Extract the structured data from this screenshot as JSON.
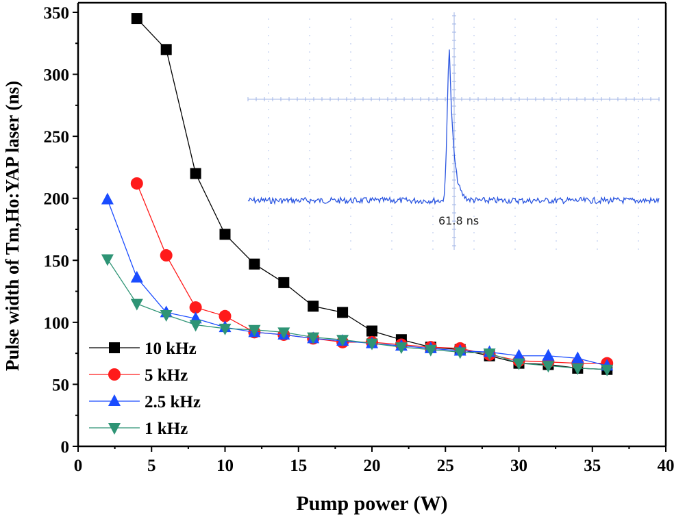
{
  "chart_data": {
    "type": "line",
    "xlabel": "Pump power (W)",
    "ylabel": "Pulse width of Tm,Ho:YAP laser (ns)",
    "xlim": [
      0,
      40
    ],
    "ylim": [
      0,
      350
    ],
    "xticks": [
      0,
      5,
      10,
      15,
      20,
      25,
      30,
      35,
      40
    ],
    "yticks": [
      0,
      50,
      100,
      150,
      200,
      250,
      300,
      350
    ],
    "grid": false,
    "legend_position": "bottom-left",
    "series": [
      {
        "name": "10 kHz",
        "color": "#000000",
        "marker": "square",
        "x": [
          4,
          6,
          8,
          10,
          12,
          14,
          16,
          18,
          20,
          22,
          24,
          26,
          28,
          30,
          32,
          34,
          36
        ],
        "y": [
          345,
          320,
          220,
          171,
          147,
          132,
          113,
          108,
          93,
          86,
          80,
          78,
          73,
          67,
          66,
          63,
          62
        ]
      },
      {
        "name": "5 kHz",
        "color": "#ff1a1a",
        "marker": "circle",
        "x": [
          4,
          6,
          8,
          10,
          12,
          14,
          16,
          18,
          20,
          22,
          24,
          26,
          28,
          30,
          32,
          34,
          36
        ],
        "y": [
          212,
          154,
          112,
          105,
          92,
          90,
          87,
          84,
          84,
          82,
          80,
          79,
          74,
          69,
          68,
          67,
          67
        ]
      },
      {
        "name": "2.5 kHz",
        "color": "#1a4cff",
        "marker": "triangle-up",
        "x": [
          2,
          4,
          6,
          8,
          10,
          12,
          14,
          16,
          18,
          20,
          22,
          24,
          26,
          28,
          30,
          32,
          34,
          36
        ],
        "y": [
          199,
          136,
          108,
          103,
          96,
          92,
          90,
          87,
          85,
          83,
          81,
          79,
          77,
          76,
          73,
          73,
          71,
          65
        ]
      },
      {
        "name": "1 kHz",
        "color": "#2e9475",
        "marker": "triangle-down",
        "x": [
          2,
          4,
          6,
          8,
          10,
          12,
          14,
          16,
          18,
          20,
          22,
          24,
          26,
          28,
          30,
          32,
          34,
          36
        ],
        "y": [
          151,
          115,
          106,
          98,
          95,
          94,
          92,
          88,
          86,
          83,
          80,
          78,
          76,
          75,
          67,
          65,
          63,
          62
        ]
      }
    ],
    "inset": {
      "annotation": "61.8 ns",
      "trace_color": "#2a55e0",
      "grid_color": "#9fb3e6"
    }
  }
}
